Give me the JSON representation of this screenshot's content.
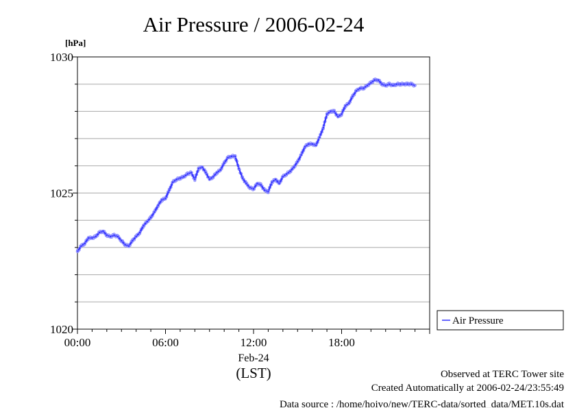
{
  "chart_data": {
    "type": "line",
    "title": "Air Pressure / 2006-02-24",
    "unit_label": "[hPa]",
    "xlabel_date": "Feb-24",
    "xlabel_tz": "(LST)",
    "x_ticks": [
      "00:00",
      "06:00",
      "12:00",
      "18:00"
    ],
    "y_ticks": [
      "1020",
      "1025",
      "1030"
    ],
    "xlim_hours": [
      0,
      24
    ],
    "ylim": [
      1020,
      1030
    ],
    "y_minor_step": 1,
    "grid": true,
    "legend_position": "right",
    "series": [
      {
        "name": "Air Pressure",
        "color": "#3333ff",
        "marker_color": "#8a8aff",
        "x_hours": [
          0,
          0.25,
          0.5,
          0.75,
          1.0,
          1.25,
          1.5,
          1.75,
          2.0,
          2.25,
          2.5,
          2.75,
          3.0,
          3.25,
          3.5,
          3.75,
          4.0,
          4.25,
          4.5,
          4.75,
          5.0,
          5.25,
          5.5,
          5.75,
          6.0,
          6.25,
          6.5,
          6.75,
          7.0,
          7.25,
          7.5,
          7.75,
          8.0,
          8.25,
          8.5,
          8.75,
          9.0,
          9.25,
          9.5,
          9.75,
          10.0,
          10.25,
          10.5,
          10.75,
          11.0,
          11.25,
          11.5,
          11.75,
          12.0,
          12.25,
          12.5,
          12.75,
          13.0,
          13.25,
          13.5,
          13.75,
          14.0,
          14.25,
          14.5,
          14.75,
          15.0,
          15.25,
          15.5,
          15.75,
          16.0,
          16.25,
          16.5,
          16.75,
          17.0,
          17.25,
          17.5,
          17.75,
          18.0,
          18.25,
          18.5,
          18.75,
          19.0,
          19.25,
          19.5,
          19.75,
          20.0,
          20.25,
          20.5,
          20.75,
          21.0,
          21.25,
          21.5,
          21.75,
          22.0,
          22.25,
          22.5,
          22.75,
          23.0
        ],
        "values": [
          1022.85,
          1023.05,
          1023.15,
          1023.35,
          1023.35,
          1023.4,
          1023.55,
          1023.6,
          1023.45,
          1023.4,
          1023.45,
          1023.4,
          1023.25,
          1023.1,
          1023.05,
          1023.25,
          1023.4,
          1023.55,
          1023.8,
          1023.95,
          1024.1,
          1024.3,
          1024.55,
          1024.75,
          1024.8,
          1025.1,
          1025.4,
          1025.5,
          1025.55,
          1025.6,
          1025.7,
          1025.75,
          1025.5,
          1025.9,
          1025.95,
          1025.75,
          1025.5,
          1025.6,
          1025.75,
          1025.85,
          1026.1,
          1026.3,
          1026.35,
          1026.35,
          1025.9,
          1025.55,
          1025.35,
          1025.2,
          1025.15,
          1025.35,
          1025.3,
          1025.1,
          1025.05,
          1025.4,
          1025.5,
          1025.35,
          1025.6,
          1025.7,
          1025.8,
          1025.95,
          1026.15,
          1026.4,
          1026.7,
          1026.8,
          1026.8,
          1026.75,
          1027.05,
          1027.4,
          1027.9,
          1028.0,
          1028.0,
          1027.8,
          1027.9,
          1028.2,
          1028.3,
          1028.55,
          1028.75,
          1028.85,
          1028.85,
          1028.95,
          1029.05,
          1029.15,
          1029.15,
          1029.0,
          1028.95,
          1029.0,
          1028.95,
          1029.0,
          1029.0,
          1029.0,
          1029.0,
          1029.0,
          1028.95
        ]
      }
    ]
  },
  "footer": {
    "line1": "Observed at TERC Tower site",
    "line2": "Created Automatically at 2006-02-24/23:55:49",
    "line3": "Data source : /home/hoivo/new/TERC-data/sorted_data/MET.10s.dat"
  }
}
